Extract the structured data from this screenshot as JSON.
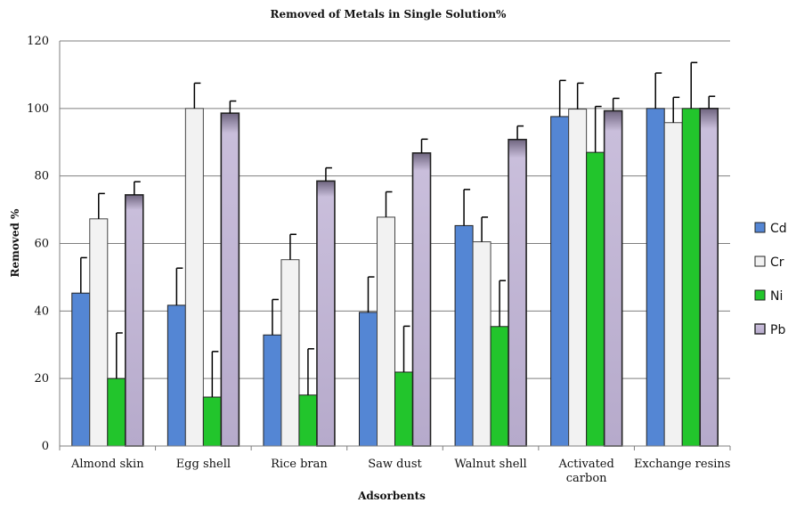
{
  "chart_data": {
    "type": "bar",
    "title": "Removed of Metals in Single Solution%",
    "xlabel": "Adsorbents",
    "ylabel": "Removed %",
    "ylim": [
      0,
      120
    ],
    "yticks": [
      "0",
      "20",
      "40",
      "60",
      "80",
      "100",
      "120"
    ],
    "grid": true,
    "legend_position": "right",
    "categories": [
      [
        "Almond skin"
      ],
      [
        "Egg shell"
      ],
      [
        "Rice bran"
      ],
      [
        "Saw dust"
      ],
      [
        "Walnut shell"
      ],
      [
        "Activated",
        "carbon"
      ],
      [
        "Exchange resins"
      ]
    ],
    "series": [
      {
        "name": "Cd",
        "color": "#5486d4",
        "values": [
          45.3,
          41.7,
          32.9,
          39.6,
          65.3,
          97.6,
          100
        ],
        "errors": [
          10.5,
          11,
          10.5,
          10.5,
          10.7,
          10.7,
          10.5
        ]
      },
      {
        "name": "Cr",
        "color": "#f2f2f2",
        "values": [
          67.3,
          100,
          55.2,
          67.8,
          60.5,
          99.8,
          95.8
        ],
        "errors": [
          7.5,
          7.5,
          7.5,
          7.5,
          7.3,
          7.7,
          7.5
        ]
      },
      {
        "name": "Ni",
        "color": "#22c52c",
        "values": [
          20,
          14.5,
          15.1,
          21.9,
          35.4,
          87,
          100
        ],
        "errors": [
          13.5,
          13.5,
          13.7,
          13.6,
          13.6,
          13.6,
          13.6
        ]
      },
      {
        "name": "Pb",
        "color": "#bcb0d0",
        "values": [
          74.4,
          98.6,
          78.5,
          86.8,
          90.8,
          99.3,
          100
        ],
        "errors": [
          3.9,
          3.6,
          3.9,
          4.1,
          4,
          3.7,
          3.6
        ]
      }
    ]
  }
}
